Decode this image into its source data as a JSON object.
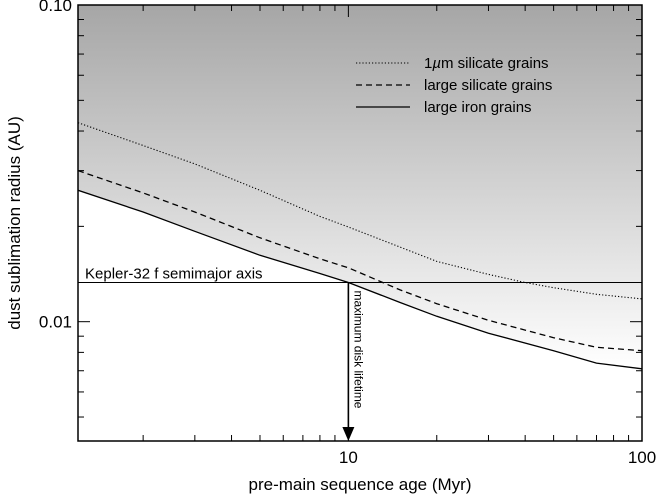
{
  "chart_data": {
    "type": "line",
    "xlabel": "pre-main sequence age (Myr)",
    "ylabel": "dust sublimation radius (AU)",
    "xscale": "log",
    "yscale": "log",
    "xlim": [
      1.2,
      100
    ],
    "ylim": [
      0.0042,
      0.1
    ],
    "xticks": [
      {
        "value": 10,
        "label": "10"
      },
      {
        "value": 100,
        "label": "100"
      }
    ],
    "yticks": [
      {
        "value": 0.01,
        "label": "0.01"
      },
      {
        "value": 0.1,
        "label": "0.10"
      }
    ],
    "grid": false,
    "legend_position": "top-right",
    "series": [
      {
        "name": "1µm silicate grains",
        "style": "dotted",
        "points": [
          [
            1.2,
            0.0425
          ],
          [
            2,
            0.036
          ],
          [
            3,
            0.0315
          ],
          [
            5,
            0.026
          ],
          [
            8,
            0.0215
          ],
          [
            10,
            0.0199
          ],
          [
            15,
            0.0172
          ],
          [
            20,
            0.0155
          ],
          [
            30,
            0.0141
          ],
          [
            40,
            0.0133
          ],
          [
            50,
            0.0128
          ],
          [
            70,
            0.0122
          ],
          [
            100,
            0.0118
          ]
        ]
      },
      {
        "name": "large silicate grains",
        "style": "dashed",
        "points": [
          [
            1.2,
            0.03
          ],
          [
            2,
            0.0255
          ],
          [
            3,
            0.0222
          ],
          [
            5,
            0.0184
          ],
          [
            8,
            0.0158
          ],
          [
            10,
            0.0148
          ],
          [
            15,
            0.0126
          ],
          [
            20,
            0.0114
          ],
          [
            30,
            0.0101
          ],
          [
            50,
            0.0089
          ],
          [
            70,
            0.0083
          ],
          [
            100,
            0.0081
          ]
        ]
      },
      {
        "name": "large iron grains",
        "style": "solid",
        "points": [
          [
            1.2,
            0.026
          ],
          [
            2,
            0.0222
          ],
          [
            3,
            0.0193
          ],
          [
            5,
            0.0162
          ],
          [
            8,
            0.0142
          ],
          [
            10,
            0.0133
          ],
          [
            15,
            0.0115
          ],
          [
            20,
            0.0104
          ],
          [
            30,
            0.0092
          ],
          [
            50,
            0.0081
          ],
          [
            70,
            0.0074
          ],
          [
            100,
            0.0071
          ]
        ]
      }
    ],
    "annotations": {
      "hline_value": 0.0133,
      "hline_label": "Kepler-32 f semimajor axis",
      "arrow_x": 10,
      "arrow_label": "maximum disk lifetime",
      "micro_symbol": "µ"
    },
    "colors": {
      "shade_dark": "#a6a6a6",
      "shade_light": "#ffffff",
      "line": "#000000"
    }
  }
}
